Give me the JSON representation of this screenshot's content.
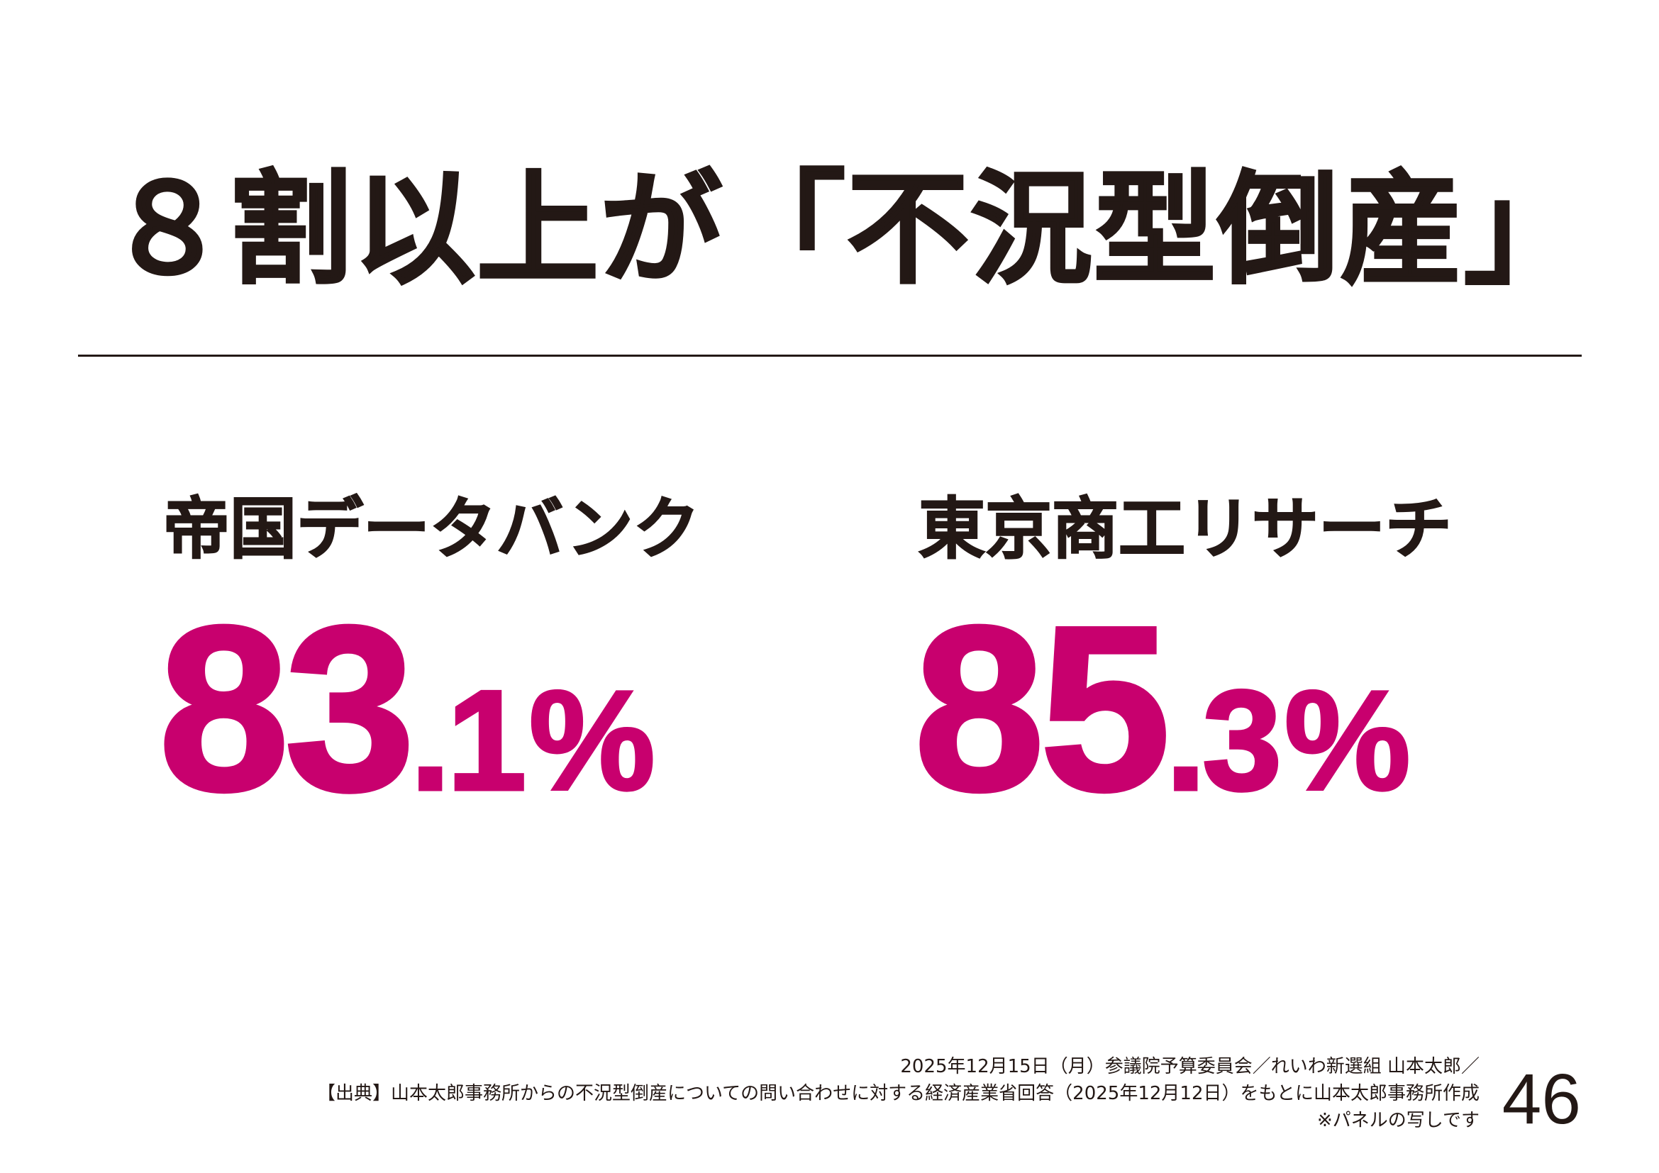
{
  "title": "８割以上が「不況型倒産」",
  "stats": [
    {
      "label": "帝国データバンク",
      "value_int": "83",
      "value_dec": ".1",
      "unit": "%"
    },
    {
      "label": "東京商工リサーチ",
      "value_int": "85",
      "value_dec": ".3",
      "unit": "%"
    }
  ],
  "footer": {
    "line1": "2025年12月15日（月）参議院予算委員会／れいわ新選組 山本太郎／",
    "line2": "【出典】山本太郎事務所からの不況型倒産についての問い合わせに対する経済産業省回答（2025年12月12日）をもとに山本太郎事務所作成",
    "line3": "※パネルの写しです"
  },
  "page_number": "46",
  "colors": {
    "accent": "#c8006e",
    "text": "#231815",
    "background": "#ffffff"
  }
}
